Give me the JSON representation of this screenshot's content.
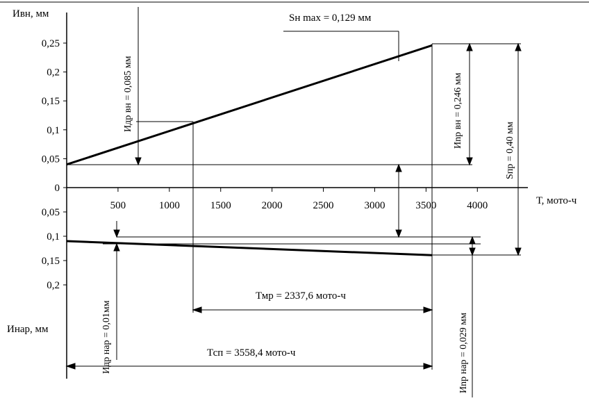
{
  "chart_data": {
    "type": "line",
    "x_axis": {
      "label": "Т, мото-ч",
      "ticks": [
        "500",
        "1000",
        "1500",
        "2000",
        "2500",
        "3000",
        "3500",
        "4000"
      ]
    },
    "y_upper_axis": {
      "label": "Ивн, мм",
      "ticks": [
        "0",
        "0,05",
        "0,1",
        "0,15",
        "0,2",
        "0,25"
      ]
    },
    "y_lower_axis": {
      "label": "Инар, мм",
      "ticks": [
        "0,05",
        "0,1",
        "0,15",
        "0,2"
      ]
    },
    "series": [
      {
        "x": [
          0,
          3558.4
        ],
        "y": [
          0.04,
          0.246
        ],
        "panel": "upper"
      },
      {
        "x": [
          0,
          3558.4
        ],
        "y": [
          0.11,
          0.139
        ],
        "panel": "lower"
      }
    ],
    "annotations": {
      "idr_vn": "Идр вн = 0,085 мм",
      "s_max": "Sн max = 0,129 мм",
      "ipr_vn": "Иnр вн = 0,246 мм",
      "s_pr": "Sпр = 0,40 мм",
      "idr_nar": "Идр нар = 0,01мм",
      "ipr_nar": "Иnр нар = 0,029 мм",
      "t_mr": "Тмр = 2337,6 мото-ч",
      "t_sp": "Тсп = 3558,4 мото-ч"
    }
  }
}
